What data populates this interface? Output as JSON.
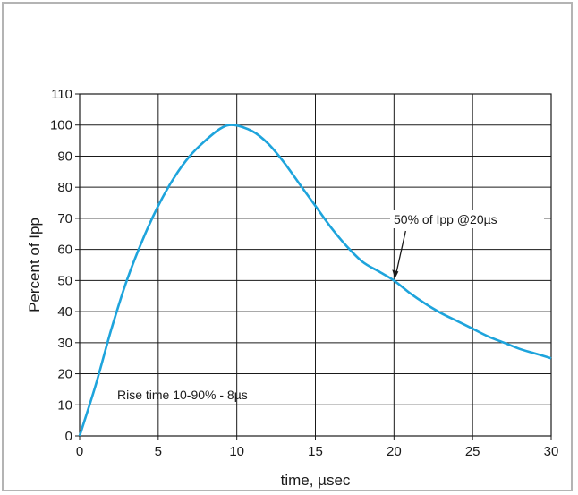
{
  "chart_data": {
    "type": "line",
    "xlabel": "time, µsec",
    "ylabel": "Percent of Ipp",
    "xlim": [
      0,
      30
    ],
    "ylim": [
      0,
      110
    ],
    "x_ticks": [
      "0",
      "5",
      "10",
      "15",
      "20",
      "25",
      "30"
    ],
    "y_ticks": [
      "0",
      "10",
      "20",
      "30",
      "40",
      "50",
      "60",
      "70",
      "80",
      "90",
      "100",
      "110"
    ],
    "grid": true,
    "line_color": "#1ea4dc",
    "series": [
      {
        "x": [
          0,
          1,
          2,
          3,
          4,
          5,
          6,
          7,
          8,
          9,
          9.8,
          11,
          12,
          13,
          14,
          15,
          16,
          17,
          18,
          19,
          20,
          21,
          22,
          23,
          24,
          25,
          26,
          27,
          28,
          29,
          30
        ],
        "values": [
          0,
          16,
          34,
          50,
          63,
          74,
          83,
          90,
          95,
          99,
          100,
          98,
          94,
          88,
          81,
          74,
          67,
          61,
          56,
          53,
          50,
          46,
          42.5,
          39.5,
          37,
          34.5,
          32,
          30,
          28,
          26.5,
          25
        ]
      }
    ],
    "annotations": {
      "rise_time": "Rise time  10-90% - 8µs",
      "half_value": "50% of Ipp @20µs",
      "half_value_point": {
        "x": 20,
        "y": 50
      }
    }
  }
}
